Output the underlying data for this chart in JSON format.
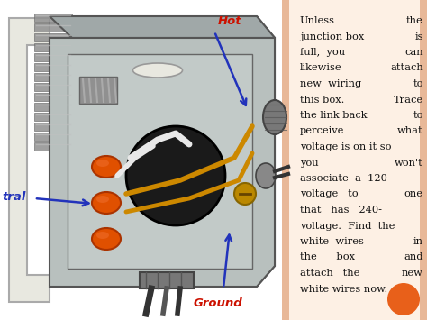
{
  "figsize": [
    4.74,
    3.55
  ],
  "dpi": 100,
  "bg_color": "#ffffff",
  "left_panel_bg": "#ffffff",
  "right_panel_bg": "#fdf5ee",
  "right_border_color": "#e8c8b0",
  "text_color": "#111111",
  "hot_label": "Hot",
  "hot_color": "#cc1100",
  "ground_label": "Ground",
  "ground_color": "#cc1100",
  "neutral_label": "tral",
  "neutral_color": "#2233bb",
  "arrow_color": "#2233bb",
  "label_fontsize": 9.5,
  "orange_dot_color": "#e8601a",
  "panel_split": 0.66,
  "box_face_color": "#b0b8b8",
  "box_edge_color": "#888888",
  "box_inner_color": "#c0c8c0",
  "wire_cap_color": "#e05500",
  "wire_cap_edge": "#aa3300",
  "gold_wire_color": "#cc8800",
  "black_wire_color": "#222222",
  "white_wire_color": "#e8e8e8",
  "conduit_color": "#909090",
  "bracket_color": "#a0a0a0"
}
